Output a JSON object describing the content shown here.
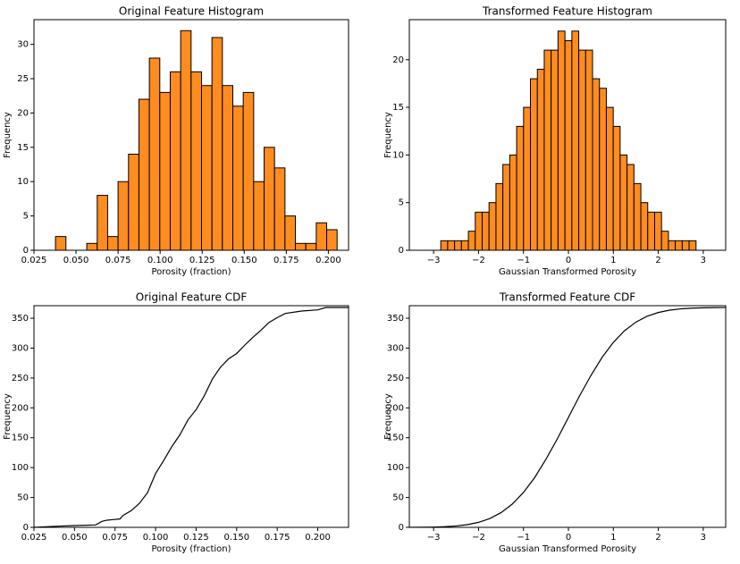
{
  "chart_data": [
    {
      "type": "histogram",
      "title": "Original Feature Histogram",
      "xlabel": "Porosity (fraction)",
      "ylabel": "Frequency",
      "color": "#ff8c1f",
      "edgecolor": "#000000",
      "bins": [
        0.0378,
        0.044,
        0.0502,
        0.0564,
        0.0626,
        0.0688,
        0.075,
        0.0812,
        0.0874,
        0.0936,
        0.0998,
        0.106,
        0.1122,
        0.1184,
        0.1246,
        0.1308,
        0.137,
        0.1432,
        0.1494,
        0.1556,
        0.1618,
        0.168,
        0.1742,
        0.1804,
        0.1866,
        0.1928,
        0.199,
        0.2052
      ],
      "values": [
        2,
        0,
        0,
        1,
        8,
        2,
        10,
        14,
        22,
        28,
        23,
        26,
        32,
        26,
        24,
        31,
        24,
        21,
        23,
        10,
        15,
        12,
        5,
        1,
        1,
        4,
        3
      ],
      "xlim": [
        0.025,
        0.212
      ],
      "ylim": [
        0,
        33.6
      ],
      "xticks": [
        0.025,
        {
          "value": 0.05,
          "label": "0.050"
        },
        0.075,
        {
          "value": 0.1,
          "label": "0.100"
        },
        0.125,
        {
          "value": 0.15,
          "label": "0.150"
        },
        0.175,
        {
          "value": 0.2,
          "label": "0.200"
        }
      ],
      "yticks": [
        0,
        5,
        10,
        15,
        20,
        25,
        30
      ]
    },
    {
      "type": "histogram",
      "title": "Transformed Feature Histogram",
      "xlabel": "Gaussian Transformed Porosity",
      "ylabel": "Frequency",
      "color": "#ff8c1f",
      "edgecolor": "#000000",
      "bins": [
        -2.84,
        -2.687,
        -2.533,
        -2.38,
        -2.226,
        -2.073,
        -1.919,
        -1.766,
        -1.612,
        -1.459,
        -1.305,
        -1.152,
        -0.998,
        -0.845,
        -0.691,
        -0.538,
        -0.384,
        -0.231,
        -0.077,
        0.077,
        0.23,
        0.384,
        0.537,
        0.691,
        0.844,
        0.998,
        1.151,
        1.305,
        1.458,
        1.612,
        1.765,
        1.919,
        2.072,
        2.226,
        2.379,
        2.533,
        2.686,
        2.84
      ],
      "values": [
        1,
        1,
        1,
        1,
        2,
        4,
        4,
        5,
        7,
        9,
        10,
        13,
        15,
        18,
        19,
        21,
        21,
        23,
        22,
        23,
        21,
        21,
        18,
        17,
        15,
        13,
        10,
        9,
        7,
        5,
        4,
        4,
        2,
        1,
        1,
        1,
        1
      ],
      "xlim": [
        -3.54,
        3.5
      ],
      "ylim": [
        0,
        24.2
      ],
      "xticks": [
        {
          "value": -3,
          "label": "−3"
        },
        {
          "value": -2,
          "label": "−2"
        },
        {
          "value": -1,
          "label": "−1"
        },
        0,
        1,
        2,
        3
      ],
      "yticks": [
        0,
        5,
        10,
        15,
        20
      ]
    },
    {
      "type": "line",
      "title": "Original Feature CDF",
      "xlabel": "Porosity (fraction)",
      "ylabel": "Frequency",
      "color": "#000000",
      "x": [
        0.025,
        0.04,
        0.05,
        0.063,
        0.067,
        0.07,
        0.078,
        0.08,
        0.085,
        0.09,
        0.095,
        0.1,
        0.105,
        0.11,
        0.115,
        0.12,
        0.125,
        0.13,
        0.135,
        0.14,
        0.145,
        0.15,
        0.155,
        0.16,
        0.165,
        0.17,
        0.175,
        0.18,
        0.19,
        0.2,
        0.205,
        0.219
      ],
      "values": [
        0,
        2,
        3,
        4,
        10,
        12,
        14,
        20,
        28,
        40,
        58,
        90,
        112,
        135,
        155,
        180,
        197,
        220,
        248,
        268,
        282,
        291,
        305,
        318,
        330,
        343,
        351,
        358,
        362,
        364,
        368,
        368
      ],
      "xlim": [
        0.025,
        0.219
      ],
      "ylim": [
        0,
        371
      ],
      "xticks": [
        0.025,
        {
          "value": 0.05,
          "label": "0.050"
        },
        0.075,
        {
          "value": 0.1,
          "label": "0.100"
        },
        0.125,
        {
          "value": 0.15,
          "label": "0.150"
        },
        0.175,
        {
          "value": 0.2,
          "label": "0.200"
        }
      ],
      "yticks": [
        0,
        50,
        100,
        150,
        200,
        250,
        300,
        350
      ]
    },
    {
      "type": "line",
      "title": "Transformed Feature CDF",
      "xlabel": "Gaussian Transformed Porosity",
      "ylabel": "Frequency",
      "color": "#000000",
      "x": [
        -3.54,
        -3.25,
        -3,
        -2.75,
        -2.5,
        -2.25,
        -2,
        -1.75,
        -1.5,
        -1.25,
        -1,
        -0.75,
        -0.5,
        -0.25,
        0,
        0.25,
        0.5,
        0.75,
        1,
        1.25,
        1.5,
        1.75,
        2,
        2.25,
        2.5,
        2.75,
        3,
        3.25,
        3.5
      ],
      "values": [
        0.1,
        0.2,
        0.5,
        1.1,
        2.3,
        4.5,
        8.4,
        14.7,
        24.6,
        38.9,
        58.4,
        83.4,
        113.9,
        147.7,
        184,
        220.3,
        254.1,
        284.6,
        309.6,
        329.1,
        343.4,
        353.3,
        359.6,
        363.5,
        365.7,
        366.9,
        367.5,
        367.8,
        367.9
      ],
      "xlim": [
        -3.54,
        3.5
      ],
      "ylim": [
        0,
        371
      ],
      "xticks": [
        {
          "value": -3,
          "label": "−3"
        },
        {
          "value": -2,
          "label": "−2"
        },
        {
          "value": -1,
          "label": "−1"
        },
        0,
        1,
        2,
        3
      ],
      "yticks": [
        0,
        50,
        100,
        150,
        200,
        250,
        300,
        350
      ]
    }
  ]
}
